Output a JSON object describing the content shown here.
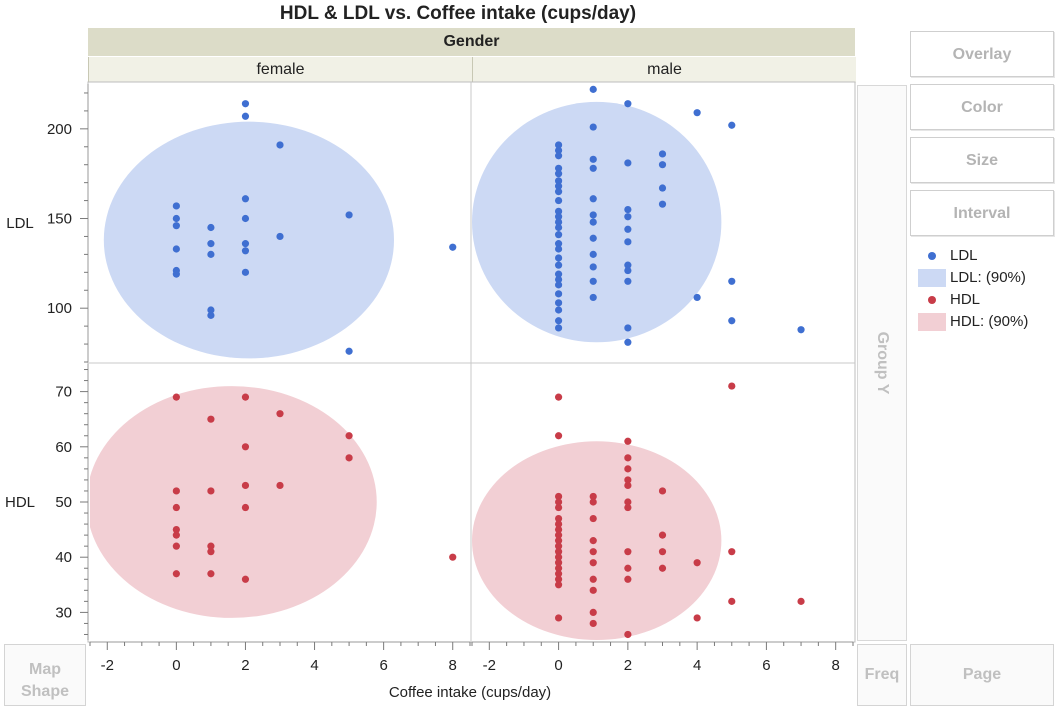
{
  "header": {
    "title": "HDL & LDL vs. Coffee intake (cups/day)"
  },
  "group_x": {
    "label": "Gender",
    "facets": [
      "female",
      "male"
    ]
  },
  "zones": {
    "overlay": "Overlay",
    "color": "Color",
    "size": "Size",
    "interval": "Interval",
    "group_y": "Group Y",
    "map_shape": "Map Shape",
    "freq": "Freq",
    "page": "Page"
  },
  "legend": [
    {
      "kind": "marker",
      "label": "LDL",
      "color": "#3f6fd1"
    },
    {
      "kind": "region",
      "label": "LDL: (90%)",
      "color": "#ccd9f4"
    },
    {
      "kind": "marker",
      "label": "HDL",
      "color": "#c83c48"
    },
    {
      "kind": "region",
      "label": "HDL: (90%)",
      "color": "#f2cfd4"
    }
  ],
  "chart_data": {
    "type": "scatter",
    "title": "HDL & LDL vs. Coffee intake (cups/day)",
    "xlabel": "Coffee intake (cups/day)",
    "xlim": [
      -2.5,
      8.5
    ],
    "xticks": [
      -2,
      0,
      2,
      4,
      6,
      8
    ],
    "rows": [
      {
        "ylabel": "LDL",
        "ylim": [
          70,
          225
        ],
        "yticks": [
          100,
          150,
          200
        ],
        "color": "#3f6fd1",
        "fill": "#ccd9f4"
      },
      {
        "ylabel": "HDL",
        "ylim": [
          25,
          75
        ],
        "yticks": [
          30,
          40,
          50,
          60,
          70
        ],
        "color": "#c83c48",
        "fill": "#f2cfd4"
      }
    ],
    "panels": [
      {
        "facet": "female",
        "series": "LDL",
        "ellipse": {
          "cx": 2.1,
          "cy": 138,
          "rx": 4.2,
          "ry": 66
        },
        "points": [
          [
            0,
            157
          ],
          [
            0,
            150
          ],
          [
            0,
            146
          ],
          [
            0,
            133
          ],
          [
            0,
            121
          ],
          [
            0,
            119
          ],
          [
            1,
            145
          ],
          [
            1,
            136
          ],
          [
            1,
            130
          ],
          [
            1,
            99
          ],
          [
            1,
            96
          ],
          [
            2,
            214
          ],
          [
            2,
            207
          ],
          [
            2,
            161
          ],
          [
            2,
            150
          ],
          [
            2,
            136
          ],
          [
            2,
            132
          ],
          [
            2,
            120
          ],
          [
            3,
            191
          ],
          [
            3,
            140
          ],
          [
            5,
            152
          ],
          [
            5,
            76
          ],
          [
            8,
            134
          ]
        ]
      },
      {
        "facet": "male",
        "series": "LDL",
        "ellipse": {
          "cx": 1.1,
          "cy": 148,
          "rx": 3.6,
          "ry": 67
        },
        "points": [
          [
            0,
            191
          ],
          [
            0,
            188
          ],
          [
            0,
            185
          ],
          [
            0,
            178
          ],
          [
            0,
            175
          ],
          [
            0,
            171
          ],
          [
            0,
            168
          ],
          [
            0,
            165
          ],
          [
            0,
            160
          ],
          [
            0,
            154
          ],
          [
            0,
            151
          ],
          [
            0,
            148
          ],
          [
            0,
            145
          ],
          [
            0,
            141
          ],
          [
            0,
            136
          ],
          [
            0,
            133
          ],
          [
            0,
            128
          ],
          [
            0,
            124
          ],
          [
            0,
            119
          ],
          [
            0,
            116
          ],
          [
            0,
            113
          ],
          [
            0,
            108
          ],
          [
            0,
            103
          ],
          [
            0,
            99
          ],
          [
            0,
            93
          ],
          [
            0,
            89
          ],
          [
            1,
            222
          ],
          [
            1,
            201
          ],
          [
            1,
            183
          ],
          [
            1,
            178
          ],
          [
            1,
            161
          ],
          [
            1,
            152
          ],
          [
            1,
            148
          ],
          [
            1,
            139
          ],
          [
            1,
            130
          ],
          [
            1,
            123
          ],
          [
            1,
            115
          ],
          [
            1,
            106
          ],
          [
            2,
            214
          ],
          [
            2,
            181
          ],
          [
            2,
            155
          ],
          [
            2,
            151
          ],
          [
            2,
            144
          ],
          [
            2,
            137
          ],
          [
            2,
            124
          ],
          [
            2,
            121
          ],
          [
            2,
            115
          ],
          [
            2,
            89
          ],
          [
            2,
            81
          ],
          [
            3,
            186
          ],
          [
            3,
            180
          ],
          [
            3,
            167
          ],
          [
            3,
            158
          ],
          [
            4,
            209
          ],
          [
            4,
            106
          ],
          [
            5,
            202
          ],
          [
            5,
            115
          ],
          [
            5,
            93
          ],
          [
            7,
            88
          ]
        ]
      },
      {
        "facet": "female",
        "series": "HDL",
        "ellipse": {
          "cx": 1.6,
          "cy": 50,
          "rx": 4.2,
          "ry": 21
        },
        "points": [
          [
            0,
            69
          ],
          [
            0,
            52
          ],
          [
            0,
            49
          ],
          [
            0,
            45
          ],
          [
            0,
            44
          ],
          [
            0,
            42
          ],
          [
            0,
            37
          ],
          [
            1,
            65
          ],
          [
            1,
            52
          ],
          [
            1,
            42
          ],
          [
            1,
            41
          ],
          [
            1,
            37
          ],
          [
            2,
            69
          ],
          [
            2,
            60
          ],
          [
            2,
            53
          ],
          [
            2,
            49
          ],
          [
            2,
            36
          ],
          [
            3,
            66
          ],
          [
            3,
            53
          ],
          [
            5,
            62
          ],
          [
            5,
            58
          ],
          [
            8,
            40
          ]
        ]
      },
      {
        "facet": "male",
        "series": "HDL",
        "ellipse": {
          "cx": 1.1,
          "cy": 43,
          "rx": 3.6,
          "ry": 18
        },
        "points": [
          [
            0,
            69
          ],
          [
            0,
            62
          ],
          [
            0,
            51
          ],
          [
            0,
            50
          ],
          [
            0,
            49
          ],
          [
            0,
            47
          ],
          [
            0,
            46
          ],
          [
            0,
            45
          ],
          [
            0,
            44
          ],
          [
            0,
            43
          ],
          [
            0,
            42
          ],
          [
            0,
            41
          ],
          [
            0,
            40
          ],
          [
            0,
            39
          ],
          [
            0,
            38
          ],
          [
            0,
            37
          ],
          [
            0,
            36
          ],
          [
            0,
            35
          ],
          [
            0,
            29
          ],
          [
            1,
            51
          ],
          [
            1,
            50
          ],
          [
            1,
            47
          ],
          [
            1,
            43
          ],
          [
            1,
            41
          ],
          [
            1,
            39
          ],
          [
            1,
            36
          ],
          [
            1,
            34
          ],
          [
            1,
            30
          ],
          [
            1,
            28
          ],
          [
            2,
            61
          ],
          [
            2,
            58
          ],
          [
            2,
            56
          ],
          [
            2,
            54
          ],
          [
            2,
            53
          ],
          [
            2,
            50
          ],
          [
            2,
            49
          ],
          [
            2,
            41
          ],
          [
            2,
            38
          ],
          [
            2,
            36
          ],
          [
            2,
            26
          ],
          [
            3,
            52
          ],
          [
            3,
            44
          ],
          [
            3,
            41
          ],
          [
            3,
            38
          ],
          [
            4,
            39
          ],
          [
            4,
            29
          ],
          [
            5,
            71
          ],
          [
            5,
            41
          ],
          [
            5,
            32
          ],
          [
            7,
            32
          ]
        ]
      }
    ]
  }
}
